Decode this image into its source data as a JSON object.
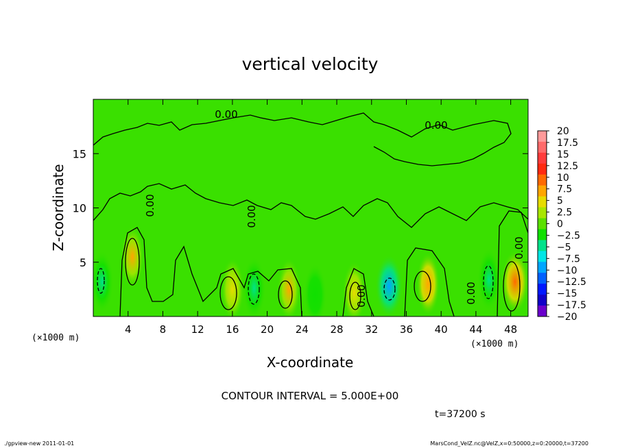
{
  "chart_data": {
    "type": "heatmap",
    "title": "vertical velocity",
    "xlabel": "X-coordinate",
    "ylabel": "Z-coordinate",
    "x_unit": "(×1000 m)",
    "y_unit": "(×1000 m)",
    "xlim": [
      0,
      50
    ],
    "ylim": [
      0,
      20
    ],
    "x_ticks": [
      4,
      8,
      12,
      16,
      20,
      24,
      28,
      32,
      36,
      40,
      44,
      48
    ],
    "y_ticks": [
      5,
      10,
      15
    ],
    "contour_interval_text": "CONTOUR INTERVAL = 5.000E+00",
    "contour_labels": [
      "0.00",
      "0.00",
      "0.00",
      "0.00",
      "0.00",
      "0.00",
      "0.00"
    ],
    "time_text": "t=37200 s",
    "colorbar": {
      "ticks": [
        "20",
        "17.5",
        "15",
        "12.5",
        "10",
        "7.5",
        "5",
        "2.5",
        "0",
        "−2.5",
        "−5",
        "−7.5",
        "−10",
        "−12.5",
        "−15",
        "−17.5",
        "−20"
      ],
      "colors": [
        "#ff9a9a",
        "#ff6a6a",
        "#ff3c3c",
        "#ff2a10",
        "#ff6a00",
        "#ffa600",
        "#e6dc00",
        "#a8e600",
        "#5ae000",
        "#10e000",
        "#00e28a",
        "#00e6e6",
        "#00a6ff",
        "#0060ff",
        "#0018ff",
        "#1000c8",
        "#6a00cc"
      ],
      "background_level_color": "#3ae000"
    },
    "anomalies": [
      {
        "x": 4.5,
        "z": 5.5,
        "value": 6.5
      },
      {
        "x": 1.0,
        "z": 3.2,
        "value": -4.5
      },
      {
        "x": 16.0,
        "z": 2.5,
        "value": 5.5
      },
      {
        "x": 18.5,
        "z": 2.6,
        "value": -6.0
      },
      {
        "x": 22.5,
        "z": 2.5,
        "value": 6.5
      },
      {
        "x": 25.5,
        "z": 2.0,
        "value": -3.0
      },
      {
        "x": 30.0,
        "z": 2.2,
        "value": 6.0
      },
      {
        "x": 34.0,
        "z": 2.8,
        "value": -10.0
      },
      {
        "x": 38.5,
        "z": 3.0,
        "value": 7.0
      },
      {
        "x": 45.5,
        "z": 3.4,
        "value": -4.5
      },
      {
        "x": 48.5,
        "z": 3.2,
        "value": 11.0
      }
    ]
  },
  "footer": {
    "left": "./gpview-new   2011-01-01",
    "right": "MarsCond_VelZ.nc@VelZ,x=0:50000,z=0:20000,t=37200"
  }
}
